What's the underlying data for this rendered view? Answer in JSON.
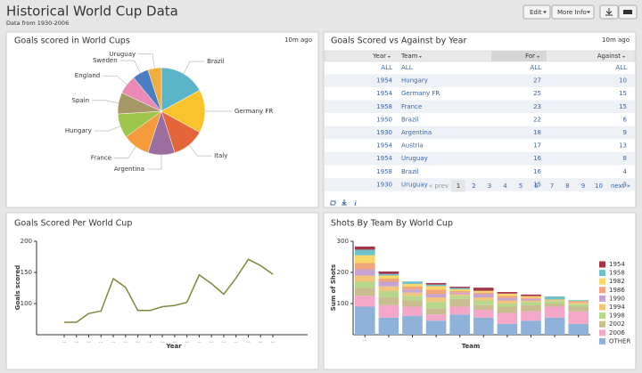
{
  "header": {
    "title": "Historical World Cup Data",
    "subtitle": "Data from 1930-2006",
    "buttons": [
      "Edit",
      "More Info"
    ]
  },
  "chart_data": [
    {
      "type": "pie",
      "title": "Goals scored in World Cups",
      "updated": "10m ago",
      "categories": [
        "Brazil",
        "Germany FR",
        "Italy",
        "Argentina",
        "France",
        "Hungary",
        "Spain",
        "England",
        "Sweden",
        "Uruguay"
      ],
      "values": [
        17,
        16,
        12,
        10,
        10,
        9,
        8,
        7,
        6,
        5
      ],
      "colors": [
        "#5ab5c9",
        "#f9c32b",
        "#e5653b",
        "#9a6f9f",
        "#f59b3c",
        "#9cc54a",
        "#a89868",
        "#ec8ab6",
        "#4b7ec0",
        "#f0ac3c"
      ]
    },
    {
      "type": "line",
      "title": "Goals Scored Per World Cup",
      "updated": "",
      "y_label": "Goals scored",
      "x_label": "Year",
      "categories": [
        "...",
        "...",
        "...",
        "...",
        "...",
        "...",
        "...",
        "...",
        "...",
        "...",
        "...",
        "...",
        "...",
        "...",
        "...",
        "...",
        "...",
        "..."
      ],
      "values": [
        70,
        70,
        84,
        88,
        140,
        126,
        89,
        89,
        95,
        97,
        102,
        146,
        132,
        115,
        141,
        171,
        161,
        147
      ],
      "color": "#7a8a3c",
      "ylim": [
        50,
        200
      ],
      "yticks": [
        100,
        150,
        200
      ]
    },
    {
      "type": "stacked_bar",
      "title": "Shots By Team By World Cup",
      "updated": "",
      "y_label": "Sum of Shots",
      "x_label": "Team",
      "categories": [
        "...",
        null,
        null,
        null,
        null,
        null,
        null,
        null,
        null,
        null
      ],
      "ylim": [
        0,
        300
      ],
      "yticks": [
        100,
        200,
        300
      ],
      "series": [
        {
          "name": "OTHER",
          "color": "#8fb2db",
          "values": [
            90,
            55,
            60,
            45,
            65,
            55,
            35,
            45,
            55,
            35
          ]
        },
        {
          "name": "2006",
          "color": "#f3a7c9",
          "values": [
            35,
            40,
            30,
            20,
            25,
            25,
            35,
            30,
            35,
            40
          ]
        },
        {
          "name": "2002",
          "color": "#c9bc8e",
          "values": [
            25,
            25,
            20,
            20,
            25,
            15,
            20,
            20,
            10,
            15
          ]
        },
        {
          "name": "1998",
          "color": "#b6d78c",
          "values": [
            20,
            20,
            15,
            20,
            10,
            15,
            10,
            10,
            8,
            8
          ]
        },
        {
          "name": "1994",
          "color": "#f3c57c",
          "values": [
            20,
            15,
            10,
            15,
            5,
            10,
            10,
            5,
            5,
            5
          ]
        },
        {
          "name": "1990",
          "color": "#c5a3d2",
          "values": [
            20,
            15,
            10,
            10,
            5,
            10,
            8,
            5,
            0,
            0
          ]
        },
        {
          "name": "1986",
          "color": "#f0a57a",
          "values": [
            20,
            10,
            10,
            15,
            5,
            5,
            7,
            4,
            0,
            5
          ]
        },
        {
          "name": "1982",
          "color": "#f7d66b",
          "values": [
            25,
            10,
            8,
            11,
            6,
            6,
            7,
            5,
            0,
            0
          ]
        },
        {
          "name": "1958",
          "color": "#6fc2c9",
          "values": [
            18,
            5,
            8,
            5,
            4,
            0,
            0,
            0,
            10,
            3
          ]
        },
        {
          "name": "1954",
          "color": "#a5344a",
          "values": [
            10,
            8,
            0,
            5,
            4,
            10,
            5,
            5,
            0,
            0
          ]
        }
      ]
    }
  ],
  "table": {
    "title": "Goals Scored vs Against by Year",
    "updated": "10m ago",
    "columns": [
      "Year",
      "Team",
      "For",
      "Against"
    ],
    "filter_row": [
      "ALL",
      "ALL",
      "ALL",
      "ALL"
    ],
    "rows": [
      [
        "1954",
        "Hungary",
        "27",
        "10"
      ],
      [
        "1954",
        "Germany FR",
        "25",
        "15"
      ],
      [
        "1958",
        "France",
        "23",
        "15"
      ],
      [
        "1950",
        "Brazil",
        "22",
        "6"
      ],
      [
        "1930",
        "Argentina",
        "18",
        "9"
      ],
      [
        "1954",
        "Austria",
        "17",
        "13"
      ],
      [
        "1954",
        "Uruguay",
        "16",
        "8"
      ],
      [
        "1958",
        "Brazil",
        "16",
        "4"
      ],
      [
        "1930",
        "Uruguay",
        "15",
        "3"
      ]
    ],
    "pagination": {
      "prev": "« prev",
      "pages": [
        "1",
        "2",
        "3",
        "4",
        "5",
        "6",
        "7",
        "8",
        "9",
        "10"
      ],
      "next": "next »"
    }
  }
}
